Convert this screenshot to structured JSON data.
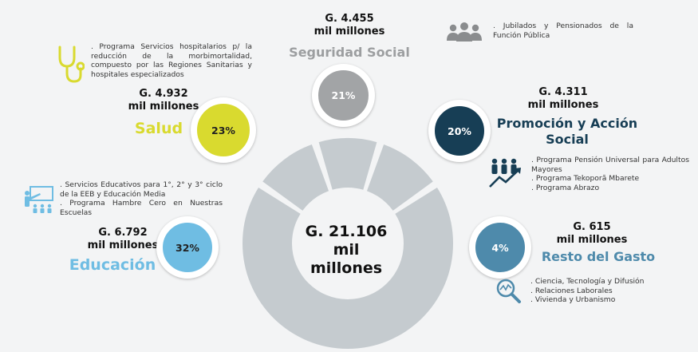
{
  "total": {
    "line1": "G. 21.106",
    "line2": "mil",
    "line3": "millones"
  },
  "colors": {
    "salud": "#d9da2f",
    "seguridad": "#a2a4a6",
    "promocion": "#173e55",
    "educacion": "#6fbde3",
    "resto": "#4e8aab",
    "donut": "#c5cbcf"
  },
  "segments": {
    "seguridad": {
      "amount_line1": "G. 4.455",
      "amount_line2": "mil millones",
      "title": "Seguridad Social",
      "percent": "21%",
      "percent_value": 21,
      "desc": ". Jubilados y Pensionados de la Función Pública",
      "icon": "people-group-icon"
    },
    "salud": {
      "amount_line1": "G. 4.932",
      "amount_line2": "mil millones",
      "title": "Salud",
      "percent": "23%",
      "percent_value": 23,
      "desc": ". Programa Servicios hospitalarios p/ la reducción de la morbimortalidad, compuesto por las Regiones Sanitarias y hospitales especializados",
      "icon": "stethoscope-icon"
    },
    "promocion": {
      "amount_line1": "G. 4.311",
      "amount_line2": "mil millones",
      "title_line1": "Promoción y Acción",
      "title_line2": "Social",
      "percent": "20%",
      "percent_value": 20,
      "desc_lines": [
        ". Programa Pensión Universal para Adultos Mayores",
        ". Programa Tekoporã Mbarete",
        ". Programa Abrazo"
      ],
      "icon": "growth-people-icon"
    },
    "educacion": {
      "amount_line1": "G. 6.792",
      "amount_line2": "mil millones",
      "title": "Educación",
      "percent": "32%",
      "percent_value": 32,
      "desc_lines": [
        ". Servicios Educativos para 1°, 2° y 3° ciclo de la EEB y Educación Media",
        ". Programa Hambre Cero en Nuestras Escuelas"
      ],
      "icon": "teacher-board-icon"
    },
    "resto": {
      "amount_line1": "G. 615",
      "amount_line2": "mil millones",
      "title": "Resto del Gasto",
      "percent": "4%",
      "percent_value": 4,
      "desc_lines": [
        ". Ciencia, Tecnología y Difusión",
        ". Relaciones Laborales",
        ". Vivienda y Urbanismo"
      ],
      "icon": "magnifier-chart-icon"
    }
  }
}
